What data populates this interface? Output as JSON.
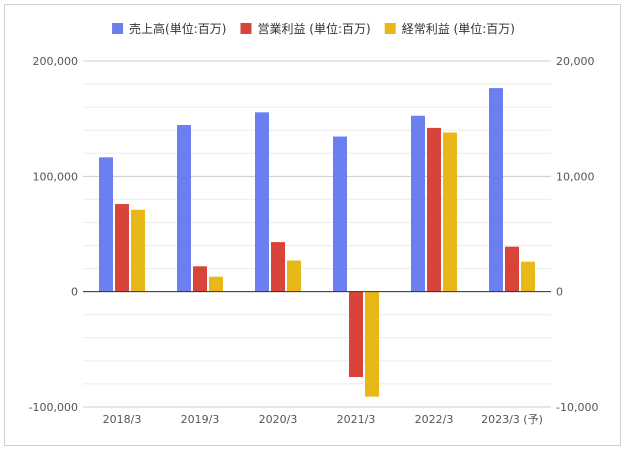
{
  "chart_data": {
    "type": "bar",
    "categories": [
      "2018/3",
      "2019/3",
      "2020/3",
      "2021/3",
      "2022/3",
      "2023/3 (予)"
    ],
    "series": [
      {
        "name": "売上高(単位:百万)",
        "axis": "left",
        "color": "#6b7ff0",
        "values": [
          116500,
          144500,
          155500,
          134500,
          152500,
          176500
        ]
      },
      {
        "name": "営業利益 (単位:百万)",
        "axis": "right",
        "color": "#d9443a",
        "values": [
          7600,
          2200,
          4300,
          -7400,
          14200,
          3900
        ]
      },
      {
        "name": "経常利益 (単位:百万)",
        "axis": "right",
        "color": "#e8b818",
        "values": [
          7100,
          1300,
          2700,
          -9100,
          13800,
          2600
        ]
      }
    ],
    "left_axis": {
      "ylim": [
        -100000,
        200000
      ],
      "ticks": [
        "200,000",
        "100,000",
        "0",
        "-100,000"
      ],
      "tick_values": [
        200000,
        100000,
        0,
        -100000
      ]
    },
    "right_axis": {
      "ylim": [
        -10000,
        20000
      ],
      "ticks": [
        "20,000",
        "10,000",
        "0",
        "-10,000"
      ],
      "tick_values": [
        20000,
        10000,
        0,
        -10000
      ]
    },
    "grid": true,
    "legend_position": "top"
  }
}
